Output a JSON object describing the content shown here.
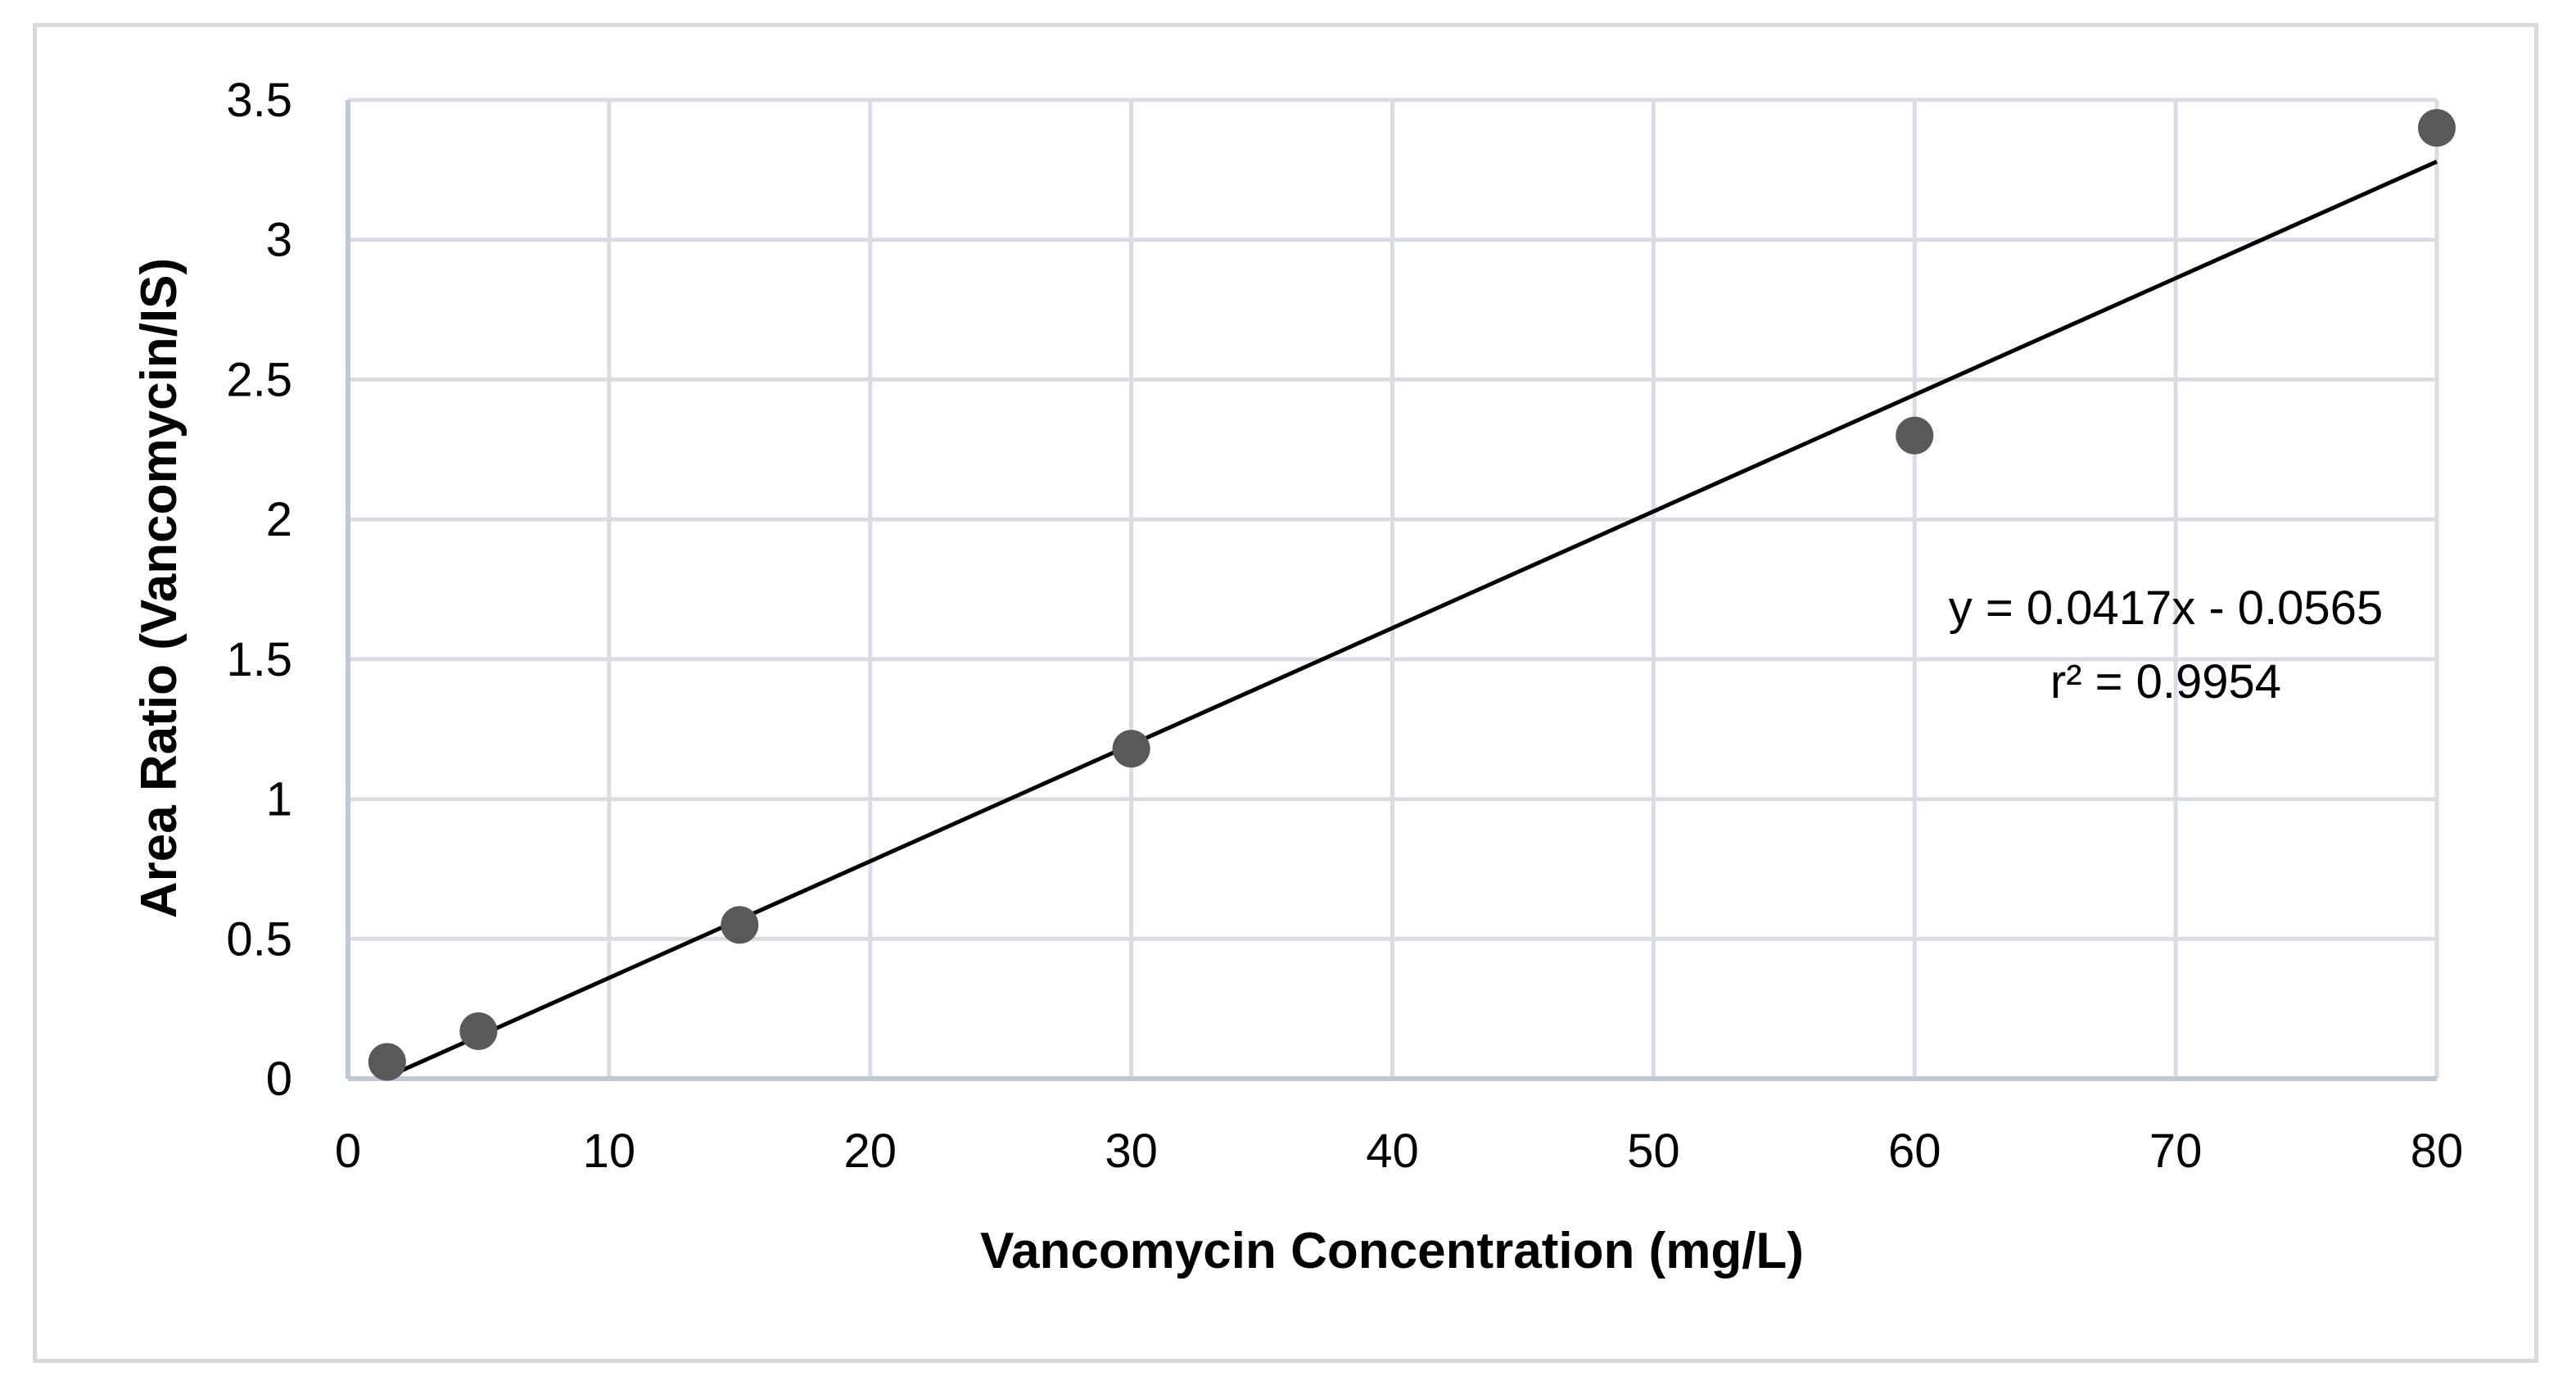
{
  "chart_data": {
    "type": "scatter",
    "title": "",
    "xlabel": "Vancomycin Concentration (mg/L)",
    "ylabel": "Area Ratio (Vancomycin/IS)",
    "xlim": [
      0,
      80
    ],
    "ylim": [
      0,
      3.5
    ],
    "x_ticks": [
      "0",
      "10",
      "20",
      "30",
      "40",
      "50",
      "60",
      "70",
      "80"
    ],
    "y_ticks": [
      "0",
      "0.5",
      "1",
      "1.5",
      "2",
      "2.5",
      "3",
      "3.5"
    ],
    "grid": true,
    "series": [
      {
        "name": "Area Ratio",
        "x": [
          1.5,
          5,
          15,
          30,
          60,
          80
        ],
        "y": [
          0.06,
          0.17,
          0.55,
          1.18,
          2.3,
          3.4
        ],
        "color": "#595959"
      }
    ],
    "trendline": {
      "slope": 0.0417,
      "intercept": -0.0565,
      "x_range": [
        1.5,
        80
      ],
      "color": "#000000"
    },
    "annotations": {
      "equation": "y = 0.0417x - 0.0565",
      "r_squared": "r² = 0.9954"
    }
  },
  "colors": {
    "grid": "#d9dde3",
    "axis": "#bfc8d6",
    "frame": "#d9d9d9",
    "point": "#595959",
    "line": "#000000"
  }
}
